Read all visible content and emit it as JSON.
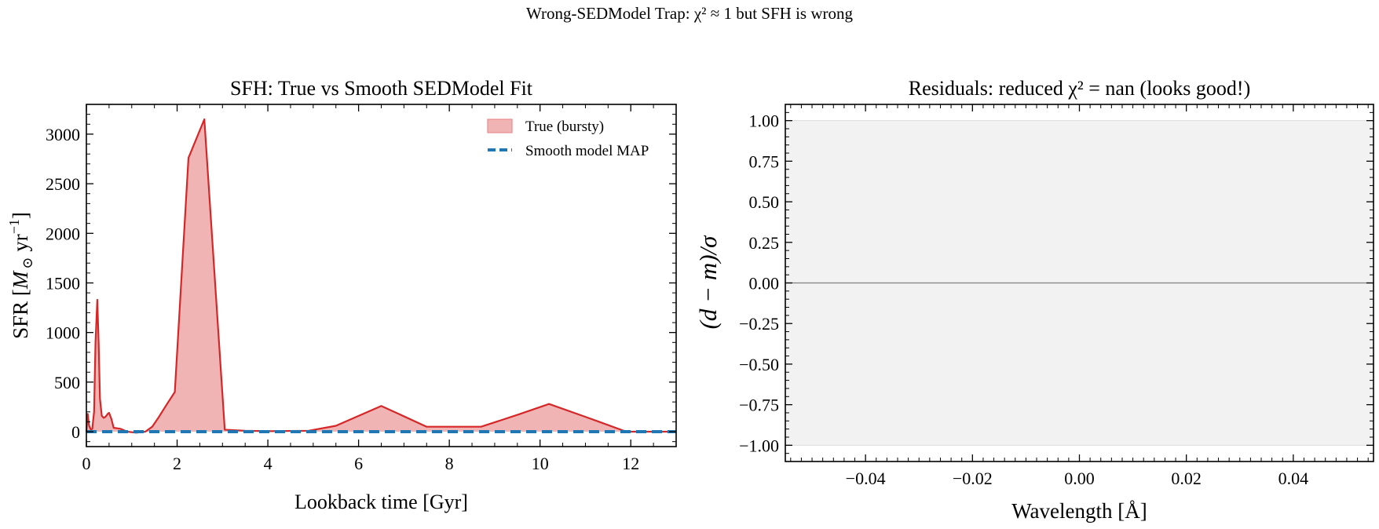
{
  "figure": {
    "suptitle": "Wrong-SEDModel Trap: χ² ≈ 1 but SFH is wrong"
  },
  "colors": {
    "true_line": "#d62728",
    "true_fill": "#f0b4b4",
    "model": "#1f77b4",
    "band": "#f2f2f2",
    "zero_line": "#808080"
  },
  "chart_data": [
    {
      "type": "area",
      "title": "SFH: True vs Smooth SEDModel Fit",
      "xlabel": "Lookback time [Gyr]",
      "ylabel_parts": {
        "prefix": "SFR [",
        "sym": "M",
        "sub": "⊙",
        "unit": " yr",
        "sup": "−1",
        "suffix": "]"
      },
      "xlim": [
        0,
        13
      ],
      "ylim": [
        -150,
        3300
      ],
      "xticks": [
        0,
        2,
        4,
        6,
        8,
        10,
        12
      ],
      "xtick_labels": [
        "0",
        "2",
        "4",
        "6",
        "8",
        "10",
        "12"
      ],
      "yticks": [
        0,
        500,
        1000,
        1500,
        2000,
        2500,
        3000
      ],
      "ytick_labels": [
        "0",
        "500",
        "1000",
        "1500",
        "2000",
        "2500",
        "3000"
      ],
      "legend": {
        "position": "top-right",
        "entries": [
          "True (bursty)",
          "Smooth model MAP"
        ]
      },
      "series": [
        {
          "name": "True (bursty)",
          "style": "filled-line",
          "x": [
            0.0,
            0.03,
            0.06,
            0.1,
            0.13,
            0.17,
            0.2,
            0.24,
            0.27,
            0.3,
            0.34,
            0.38,
            0.42,
            0.47,
            0.5,
            0.55,
            0.6,
            0.75,
            0.9,
            1.1,
            1.3,
            1.45,
            1.6,
            1.75,
            1.95,
            2.25,
            2.6,
            3.05,
            3.5,
            4.0,
            4.9,
            5.5,
            6.5,
            7.5,
            8.7,
            9.5,
            10.2,
            11.0,
            11.9,
            12.5,
            13.0
          ],
          "y": [
            0,
            180,
            60,
            20,
            30,
            200,
            900,
            1330,
            900,
            330,
            160,
            140,
            150,
            180,
            190,
            130,
            40,
            30,
            0,
            -10,
            0,
            50,
            150,
            260,
            400,
            2760,
            3150,
            20,
            10,
            5,
            10,
            60,
            260,
            50,
            50,
            170,
            280,
            150,
            0,
            0,
            0
          ]
        },
        {
          "name": "Smooth model MAP",
          "style": "dashed-line",
          "x": [
            0.0,
            13.0
          ],
          "y": [
            0,
            0
          ]
        }
      ]
    },
    {
      "type": "line",
      "title": "Residuals: reduced χ² = nan (looks good!)",
      "xlabel": "Wavelength [Å]",
      "ylabel": "(d − m)/σ",
      "xlim": [
        -0.055,
        0.055
      ],
      "ylim": [
        -1.1,
        1.1
      ],
      "xticks": [
        -0.04,
        -0.02,
        0.0,
        0.02,
        0.04
      ],
      "xtick_labels": [
        "−0.04",
        "−0.02",
        "0.00",
        "0.02",
        "0.04"
      ],
      "yticks": [
        -1.0,
        -0.75,
        -0.5,
        -0.25,
        0.0,
        0.25,
        0.5,
        0.75,
        1.0
      ],
      "ytick_labels": [
        "−1.00",
        "−0.75",
        "−0.50",
        "−0.25",
        "0.00",
        "0.25",
        "0.50",
        "0.75",
        "1.00"
      ],
      "band": [
        -1.0,
        1.0
      ],
      "hline": 0.0,
      "series": []
    }
  ]
}
